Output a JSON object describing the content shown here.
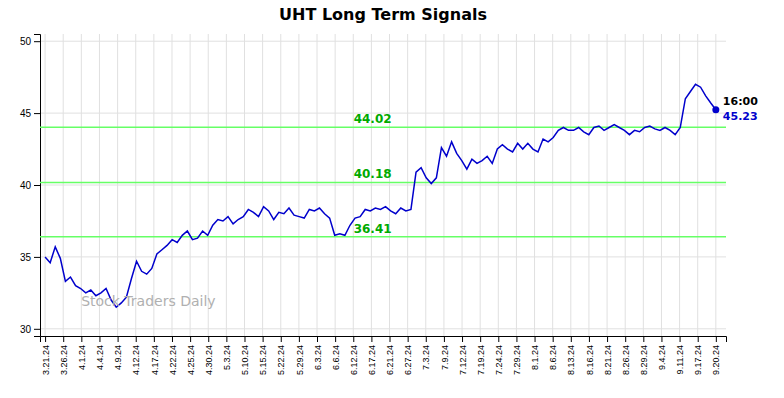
{
  "chart_data": {
    "type": "line",
    "title": "UHT Long Term Signals",
    "color": "#0000cc",
    "grid": true,
    "xlim": [
      -1,
      134
    ],
    "ylim": [
      29.5,
      50.5
    ],
    "yticks": [
      30,
      35,
      40,
      45,
      50
    ],
    "xticks": [
      {
        "value": 0,
        "label": "3.21.24"
      },
      {
        "value": 3.567568,
        "label": "3.26.24"
      },
      {
        "value": 7.135135,
        "label": "4.1.24"
      },
      {
        "value": 10.702703,
        "label": "4.4.24"
      },
      {
        "value": 14.27027,
        "label": "4.9.24"
      },
      {
        "value": 17.837838,
        "label": "4.12.24"
      },
      {
        "value": 21.405405,
        "label": "4.17.24"
      },
      {
        "value": 24.972973,
        "label": "4.22.24"
      },
      {
        "value": 28.540541,
        "label": "4.25.24"
      },
      {
        "value": 32.108108,
        "label": "4.30.24"
      },
      {
        "value": 35.675676,
        "label": "5.3.24"
      },
      {
        "value": 39.243243,
        "label": "5.10.24"
      },
      {
        "value": 42.810811,
        "label": "5.15.24"
      },
      {
        "value": 46.378378,
        "label": "5.22.24"
      },
      {
        "value": 49.945946,
        "label": "5.29.24"
      },
      {
        "value": 53.513514,
        "label": "6.3.24"
      },
      {
        "value": 57.081081,
        "label": "6.6.24"
      },
      {
        "value": 60.648649,
        "label": "6.12.24"
      },
      {
        "value": 64.216216,
        "label": "6.17.24"
      },
      {
        "value": 67.783784,
        "label": "6.21.24"
      },
      {
        "value": 71.351351,
        "label": "6.27.24"
      },
      {
        "value": 74.918919,
        "label": "7.3.24"
      },
      {
        "value": 78.486486,
        "label": "7.9.24"
      },
      {
        "value": 82.054054,
        "label": "7.12.24"
      },
      {
        "value": 85.621622,
        "label": "7.19.24"
      },
      {
        "value": 89.189189,
        "label": "7.24.24"
      },
      {
        "value": 92.756757,
        "label": "7.29.24"
      },
      {
        "value": 96.324324,
        "label": "8.1.24"
      },
      {
        "value": 99.891892,
        "label": "8.6.24"
      },
      {
        "value": 103.459459,
        "label": "8.13.24"
      },
      {
        "value": 107.027027,
        "label": "8.16.24"
      },
      {
        "value": 110.594595,
        "label": "8.21.24"
      },
      {
        "value": 114.162162,
        "label": "8.26.24"
      },
      {
        "value": 117.72973,
        "label": "8.29.24"
      },
      {
        "value": 121.297297,
        "label": "9.4.24"
      },
      {
        "value": 124.864865,
        "label": "9.11.24"
      },
      {
        "value": 128.432432,
        "label": "9.17.24"
      },
      {
        "value": 132,
        "label": "9.20.24"
      }
    ],
    "values": [
      35.0,
      34.6,
      35.7,
      34.9,
      33.3,
      33.6,
      33.0,
      32.8,
      32.5,
      32.7,
      32.3,
      32.5,
      32.8,
      32.0,
      31.5,
      31.8,
      32.2,
      33.5,
      34.7,
      34.0,
      33.8,
      34.2,
      35.2,
      35.5,
      35.8,
      36.2,
      36.0,
      36.5,
      36.8,
      36.2,
      36.3,
      36.8,
      36.5,
      37.2,
      37.6,
      37.5,
      37.8,
      37.3,
      37.6,
      37.8,
      38.3,
      38.1,
      37.8,
      38.5,
      38.2,
      37.6,
      38.1,
      38.0,
      38.4,
      37.9,
      37.8,
      37.7,
      38.3,
      38.2,
      38.4,
      38.0,
      37.7,
      36.5,
      36.6,
      36.5,
      37.2,
      37.7,
      37.8,
      38.3,
      38.2,
      38.4,
      38.3,
      38.5,
      38.2,
      38.0,
      38.4,
      38.2,
      38.3,
      40.9,
      41.2,
      40.5,
      40.1,
      40.5,
      42.6,
      42.0,
      43.0,
      42.2,
      41.7,
      41.1,
      41.8,
      41.5,
      41.7,
      42.0,
      41.5,
      42.5,
      42.8,
      42.5,
      42.3,
      42.9,
      42.5,
      42.9,
      42.5,
      42.3,
      43.2,
      43.0,
      43.3,
      43.8,
      44.0,
      43.8,
      43.8,
      44.0,
      43.7,
      43.5,
      44.0,
      44.1,
      43.8,
      44.0,
      44.2,
      44.0,
      43.8,
      43.5,
      43.8,
      43.7,
      44.0,
      44.1,
      43.9,
      43.8,
      44.0,
      43.8,
      43.5,
      44.0,
      46.0,
      46.5,
      47.0,
      46.8,
      46.2,
      45.7,
      45.23
    ],
    "hlines": {
      "color": "#66ff66",
      "label_color": "#00aa00",
      "values": [
        36.41,
        40.18,
        44.02
      ],
      "value_labels": [
        "36.41",
        "40.18",
        "44.02"
      ]
    },
    "annotations": [
      {
        "text": "16:00",
        "color": "#000000"
      },
      {
        "text": "45.23",
        "color": "#0000cc"
      },
      {
        "text": "Stock Traders Daily",
        "color": "#b0b0b0"
      }
    ]
  }
}
